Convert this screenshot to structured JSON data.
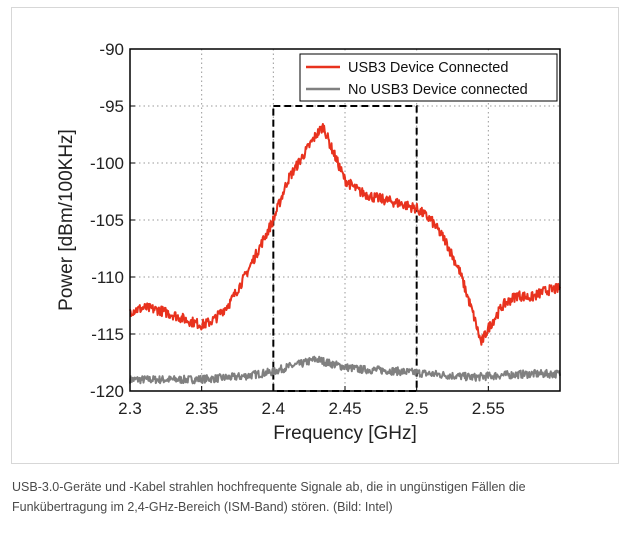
{
  "chart_data": {
    "type": "line",
    "title": "",
    "xlabel": "Frequency [GHz]",
    "ylabel": "Power [dBm/100KHz]",
    "xlim": [
      2.3,
      2.6
    ],
    "ylim": [
      -120,
      -90
    ],
    "x_ticks": [
      2.3,
      2.35,
      2.4,
      2.45,
      2.5,
      2.55
    ],
    "x_tick_labels": [
      "2.3",
      "2.35",
      "2.4",
      "2.45",
      "2.5",
      "2.55"
    ],
    "y_ticks": [
      -90,
      -95,
      -100,
      -105,
      -110,
      -115,
      -120
    ],
    "y_tick_labels": [
      "-90",
      "-95",
      "-100",
      "-105",
      "-110",
      "-115",
      "-120"
    ],
    "grid": true,
    "legend_position": "top-right",
    "highlight_box": {
      "x": [
        2.4,
        2.5
      ],
      "y": [
        -120,
        -95
      ]
    },
    "series": [
      {
        "name": "USB3 Device Connected",
        "color": "#e8321e",
        "x": [
          2.3,
          2.31,
          2.32,
          2.33,
          2.34,
          2.345,
          2.35,
          2.355,
          2.36,
          2.37,
          2.38,
          2.39,
          2.4,
          2.41,
          2.42,
          2.43,
          2.435,
          2.44,
          2.45,
          2.46,
          2.47,
          2.48,
          2.49,
          2.5,
          2.51,
          2.52,
          2.53,
          2.54,
          2.545,
          2.55,
          2.56,
          2.57,
          2.58,
          2.59,
          2.6
        ],
        "y": [
          -113.0,
          -112.7,
          -112.9,
          -113.3,
          -113.8,
          -114.0,
          -114.2,
          -114.0,
          -113.6,
          -112.2,
          -110.0,
          -107.5,
          -105.0,
          -101.5,
          -99.5,
          -97.5,
          -96.8,
          -98.5,
          -101.5,
          -102.5,
          -103.0,
          -103.3,
          -103.6,
          -104.0,
          -105.0,
          -106.8,
          -109.5,
          -113.5,
          -115.8,
          -114.5,
          -112.5,
          -111.6,
          -111.8,
          -111.2,
          -111.0
        ]
      },
      {
        "name": "No USB3 Device connected",
        "color": "#808080",
        "x": [
          2.3,
          2.32,
          2.34,
          2.36,
          2.38,
          2.4,
          2.41,
          2.42,
          2.43,
          2.44,
          2.45,
          2.46,
          2.48,
          2.5,
          2.52,
          2.54,
          2.56,
          2.58,
          2.6
        ],
        "y": [
          -119.0,
          -119.0,
          -119.0,
          -118.9,
          -118.7,
          -118.3,
          -117.9,
          -117.6,
          -117.2,
          -117.6,
          -117.9,
          -118.1,
          -118.2,
          -118.4,
          -118.6,
          -118.8,
          -118.6,
          -118.5,
          -118.5
        ]
      }
    ]
  },
  "caption": {
    "line1": "USB-3.0-Geräte und -Kabel strahlen hochfrequente Signale ab, die in ungünstigen Fällen die",
    "line2": "Funkübertragung im 2,4-GHz-Bereich (ISM-Band) stören. (Bild: Intel)"
  }
}
